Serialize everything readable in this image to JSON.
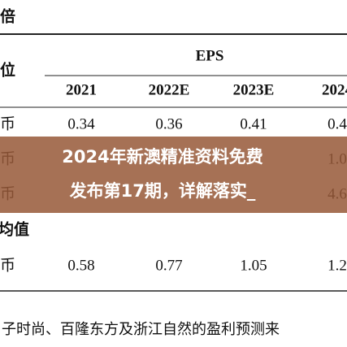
{
  "header": {
    "corner": "倍",
    "unit": "位",
    "group": "EPS",
    "columns": [
      "2021",
      "2022E",
      "2023E",
      "2024"
    ]
  },
  "table": {
    "rows": [
      {
        "label": "币",
        "cells": [
          "0.34",
          "0.36",
          "0.41",
          "0.4"
        ]
      },
      {
        "label": "币",
        "cells": [
          null,
          null,
          null,
          "1.0"
        ]
      },
      {
        "label": "币",
        "cells": [
          null,
          null,
          null,
          "4.6"
        ]
      },
      {
        "label": "均值",
        "cells": [
          null,
          null,
          null,
          null
        ]
      },
      {
        "label": "币",
        "cells": [
          "0.58",
          "0.77",
          "1.05",
          "1.2"
        ]
      }
    ]
  },
  "footer": "子时尚、百隆东方及浙江自然的盈利预测来",
  "banner": {
    "lines": [
      "2024年新澳精准资料免费",
      "发布第17期，详解落实_"
    ]
  }
}
